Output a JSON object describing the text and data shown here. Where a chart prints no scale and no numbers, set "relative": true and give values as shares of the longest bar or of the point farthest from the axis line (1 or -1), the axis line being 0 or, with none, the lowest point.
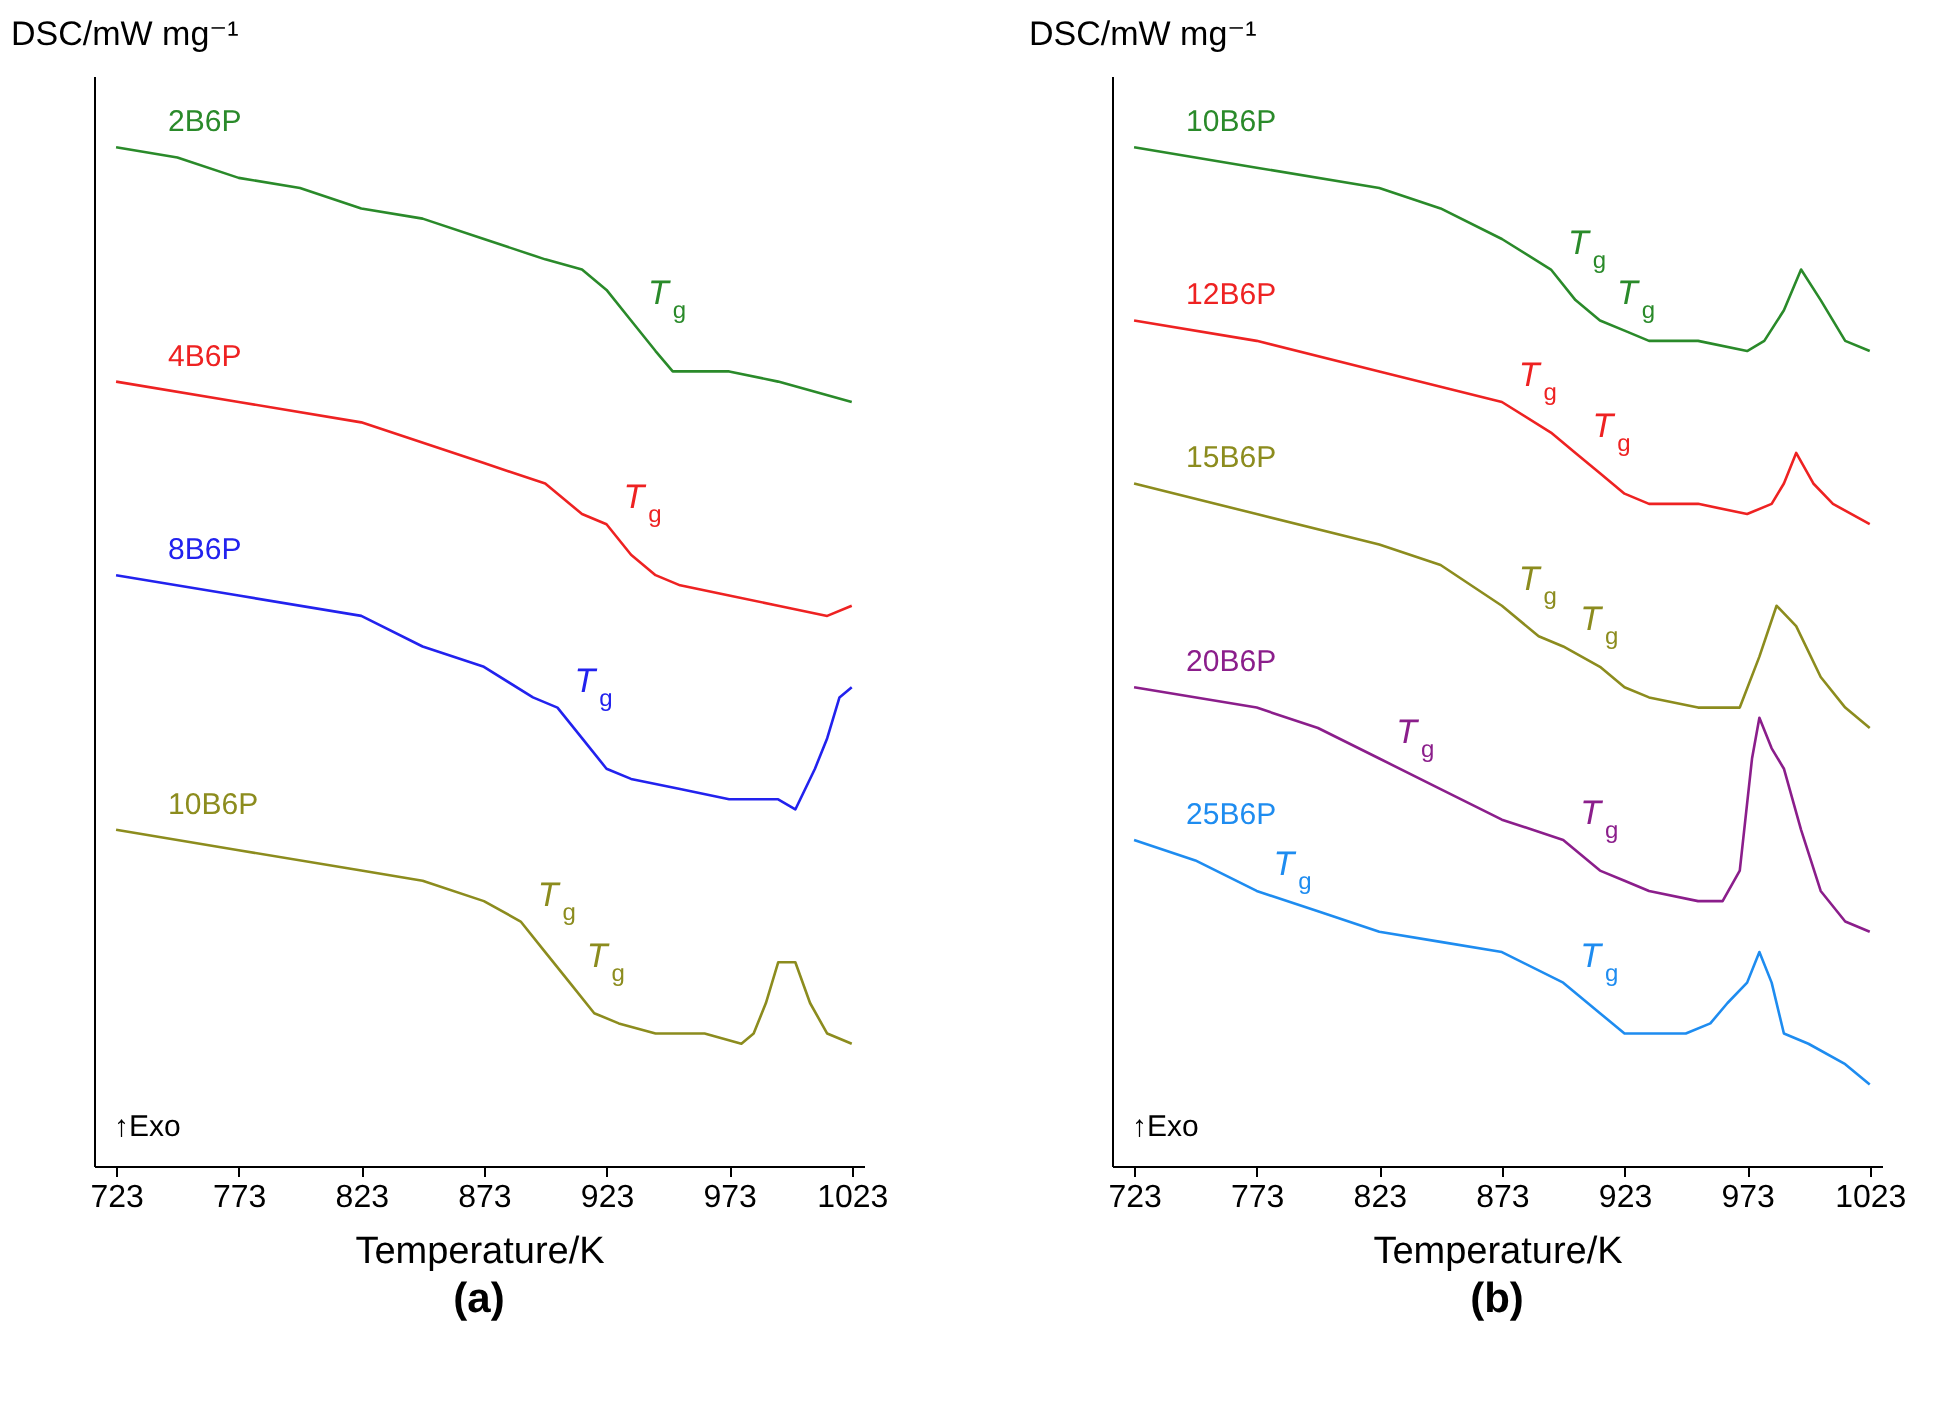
{
  "chart_data": [
    {
      "type": "line",
      "title": "(a)",
      "xlabel": "Temperature/K",
      "ylabel": "DSC/mW mg⁻¹",
      "relative": true,
      "legend": false,
      "grid": false,
      "xlim": [
        714,
        1028
      ],
      "xticks": [
        723,
        773,
        823,
        873,
        923,
        973,
        1023
      ],
      "series": [
        {
          "name": "2B6P",
          "color": "#2a8a2a",
          "x": [
            723,
            748,
            773,
            798,
            823,
            848,
            873,
            898,
            913,
            923,
            933,
            943,
            950,
            958,
            965,
            973,
            993,
            1023
          ],
          "values": [
            1.0,
            0.99,
            0.97,
            0.96,
            0.94,
            0.93,
            0.91,
            0.89,
            0.88,
            0.86,
            0.83,
            0.8,
            0.78,
            0.78,
            0.78,
            0.78,
            0.77,
            0.75
          ]
        },
        {
          "name": "4B6P",
          "color": "#ee2222",
          "x": [
            723,
            773,
            823,
            873,
            898,
            913,
            923,
            933,
            943,
            953,
            973,
            993,
            1013,
            1023
          ],
          "values": [
            0.77,
            0.75,
            0.73,
            0.69,
            0.67,
            0.64,
            0.63,
            0.6,
            0.58,
            0.57,
            0.56,
            0.55,
            0.54,
            0.55
          ]
        },
        {
          "name": "8B6P",
          "color": "#2222ee",
          "x": [
            723,
            773,
            823,
            848,
            873,
            893,
            903,
            913,
            923,
            933,
            953,
            973,
            993,
            1000,
            1008,
            1013,
            1018,
            1023
          ],
          "values": [
            0.58,
            0.56,
            0.54,
            0.51,
            0.49,
            0.46,
            0.45,
            0.42,
            0.39,
            0.38,
            0.37,
            0.36,
            0.36,
            0.35,
            0.39,
            0.42,
            0.46,
            0.47
          ]
        },
        {
          "name": "10B6P",
          "color": "#8c8c1e",
          "x": [
            723,
            773,
            823,
            848,
            873,
            888,
            898,
            908,
            918,
            928,
            943,
            963,
            978,
            983,
            988,
            993,
            996,
            1000,
            1006,
            1013,
            1023
          ],
          "values": [
            0.33,
            0.31,
            0.29,
            0.28,
            0.26,
            0.24,
            0.21,
            0.18,
            0.15,
            0.14,
            0.13,
            0.13,
            0.12,
            0.13,
            0.16,
            0.2,
            0.2,
            0.2,
            0.16,
            0.13,
            0.12
          ]
        }
      ],
      "annotations": [
        {
          "text": "T$_{g}$",
          "x": 933,
          "y": 0.83
        },
        {
          "text": "T$_{g}$",
          "x": 923,
          "y": 0.63
        },
        {
          "text": "T$_{g}$",
          "x": 903,
          "y": 0.45
        },
        {
          "text": "T$_{g}$",
          "x": 888,
          "y": 0.24
        },
        {
          "text": "T$_{g}$",
          "x": 908,
          "y": 0.18
        },
        "↑Exo"
      ]
    },
    {
      "type": "line",
      "title": "(b)",
      "xlabel": "Temperature/K",
      "ylabel": "DSC/mW mg⁻¹",
      "relative": true,
      "legend": false,
      "grid": false,
      "xlim": [
        714,
        1028
      ],
      "xticks": [
        723,
        773,
        823,
        873,
        923,
        973,
        1023
      ],
      "series": [
        {
          "name": "10B6P",
          "color": "#2a8a2a",
          "x": [
            723,
            773,
            823,
            848,
            873,
            893,
            903,
            913,
            923,
            933,
            953,
            973,
            980,
            988,
            995,
            1003,
            1013,
            1023
          ],
          "values": [
            1.0,
            0.98,
            0.96,
            0.94,
            0.91,
            0.88,
            0.85,
            0.83,
            0.82,
            0.81,
            0.81,
            0.8,
            0.81,
            0.84,
            0.88,
            0.85,
            0.81,
            0.8
          ]
        },
        {
          "name": "12B6P",
          "color": "#ee2222",
          "x": [
            723,
            773,
            823,
            873,
            893,
            903,
            913,
            923,
            933,
            953,
            973,
            983,
            988,
            993,
            1000,
            1008,
            1023
          ],
          "values": [
            0.83,
            0.81,
            0.78,
            0.75,
            0.72,
            0.7,
            0.68,
            0.66,
            0.65,
            0.65,
            0.64,
            0.65,
            0.67,
            0.7,
            0.67,
            0.65,
            0.63
          ]
        },
        {
          "name": "15B6P",
          "color": "#8c8c1e",
          "x": [
            723,
            773,
            823,
            848,
            873,
            888,
            898,
            913,
            923,
            933,
            953,
            963,
            970,
            978,
            985,
            993,
            1003,
            1013,
            1023
          ],
          "values": [
            0.67,
            0.64,
            0.61,
            0.59,
            0.55,
            0.52,
            0.51,
            0.49,
            0.47,
            0.46,
            0.45,
            0.45,
            0.45,
            0.5,
            0.55,
            0.53,
            0.48,
            0.45,
            0.43
          ]
        },
        {
          "name": "20B6P",
          "color": "#8b1e8b",
          "x": [
            723,
            773,
            798,
            823,
            848,
            873,
            898,
            913,
            923,
            933,
            953,
            963,
            970,
            975,
            978,
            983,
            988,
            995,
            1003,
            1013,
            1023
          ],
          "values": [
            0.47,
            0.45,
            0.43,
            0.4,
            0.37,
            0.34,
            0.32,
            0.29,
            0.28,
            0.27,
            0.26,
            0.26,
            0.29,
            0.4,
            0.44,
            0.41,
            0.39,
            0.33,
            0.27,
            0.24,
            0.23
          ]
        },
        {
          "name": "25B6P",
          "color": "#1e8cf0",
          "x": [
            723,
            748,
            773,
            798,
            823,
            848,
            873,
            898,
            913,
            923,
            933,
            948,
            958,
            965,
            973,
            978,
            983,
            988,
            998,
            1013,
            1023
          ],
          "values": [
            0.32,
            0.3,
            0.27,
            0.25,
            0.23,
            0.22,
            0.21,
            0.18,
            0.15,
            0.13,
            0.13,
            0.13,
            0.14,
            0.16,
            0.18,
            0.21,
            0.18,
            0.13,
            0.12,
            0.1,
            0.08
          ]
        }
      ],
      "annotations": [
        {
          "text": "T$_{g}$",
          "x": 893,
          "y": 0.88
        },
        {
          "text": "T$_{g}$",
          "x": 913,
          "y": 0.83
        },
        {
          "text": "T$_{g}$",
          "x": 873,
          "y": 0.75
        },
        {
          "text": "T$_{g}$",
          "x": 903,
          "y": 0.7
        },
        {
          "text": "T$_{g}$",
          "x": 873,
          "y": 0.55
        },
        {
          "text": "T$_{g}$",
          "x": 898,
          "y": 0.51
        },
        {
          "text": "T$_{g}$",
          "x": 823,
          "y": 0.4
        },
        {
          "text": "T$_{g}$",
          "x": 898,
          "y": 0.32
        },
        {
          "text": "T$_{g}$",
          "x": 773,
          "y": 0.27
        },
        {
          "text": "T$_{g}$",
          "x": 898,
          "y": 0.18
        },
        "↑Exo"
      ]
    }
  ]
}
